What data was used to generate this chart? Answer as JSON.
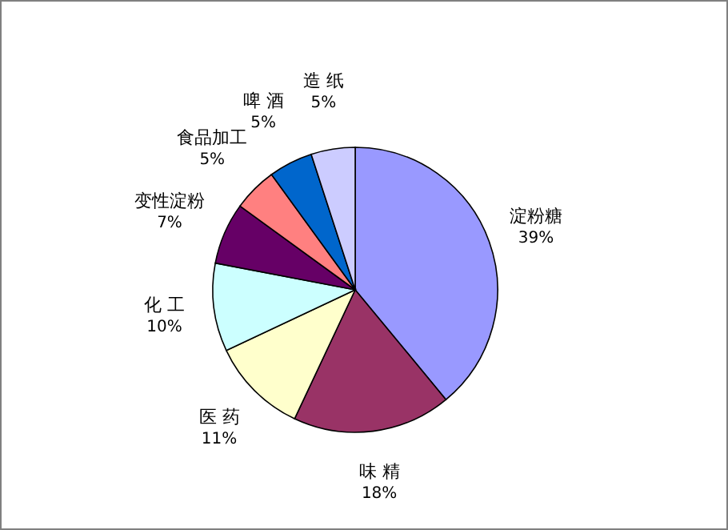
{
  "chart_data": {
    "type": "pie",
    "categories": [
      "淀粉糖",
      "味 精",
      "医 药",
      "化 工",
      "变性淀粉",
      "食品加工",
      "啤 酒",
      "造 纸"
    ],
    "values": [
      39,
      18,
      11,
      10,
      7,
      5,
      5,
      5
    ],
    "colors": [
      "#9999ff",
      "#993366",
      "#ffffcc",
      "#ccffff",
      "#660066",
      "#ff8080",
      "#0066cc",
      "#ccccff"
    ],
    "value_labels": [
      "39%",
      "18%",
      "11%",
      "10%",
      "7%",
      "5%",
      "5%",
      "5%"
    ]
  }
}
